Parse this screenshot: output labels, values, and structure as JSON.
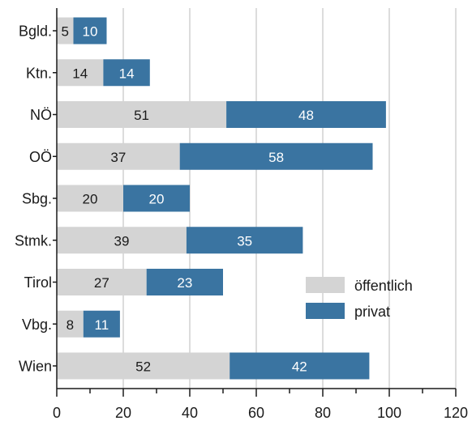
{
  "chart_data": {
    "type": "bar",
    "orientation": "horizontal",
    "stacked": true,
    "categories": [
      "Bgld.",
      "Ktn.",
      "NÖ",
      "OÖ",
      "Sbg.",
      "Stmk.",
      "Tirol",
      "Vbg.",
      "Wien"
    ],
    "series": [
      {
        "name": "öffentlich",
        "values": [
          5,
          14,
          51,
          37,
          20,
          39,
          27,
          8,
          52
        ],
        "color": "#d4d4d4",
        "label_color": "#1a1a1a"
      },
      {
        "name": "privat",
        "values": [
          10,
          14,
          48,
          58,
          20,
          35,
          23,
          11,
          42
        ],
        "color": "#3a74a1",
        "label_color": "#ffffff"
      }
    ],
    "xlim": [
      0,
      120
    ],
    "x_ticks": [
      0,
      20,
      40,
      60,
      80,
      100,
      120
    ],
    "x_tick_labels": [
      "0",
      "20",
      "40",
      "60",
      "80",
      "100",
      "120"
    ],
    "grid": "vertical",
    "legend_position": "right-lower",
    "title": "",
    "xlabel": "",
    "ylabel": ""
  }
}
